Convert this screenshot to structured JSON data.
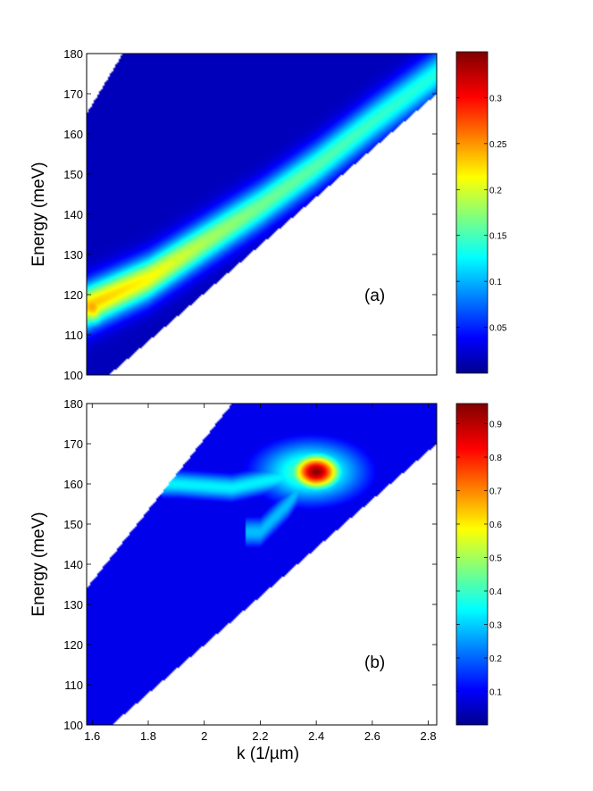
{
  "chart_data": [
    {
      "type": "heatmap",
      "panel_label": "(a)",
      "xlabel": "",
      "ylabel": "Energy (meV)",
      "xlim": [
        1.58,
        2.83
      ],
      "ylim": [
        100,
        180
      ],
      "y_ticks": [
        "100",
        "110",
        "120",
        "130",
        "140",
        "150",
        "160",
        "170",
        "180"
      ],
      "colorbar": {
        "min": 0,
        "max": 0.35,
        "ticks": [
          "0.05",
          "0.1",
          "0.15",
          "0.2",
          "0.25",
          "0.3"
        ],
        "colormap": "jet"
      },
      "region_vertices": [
        [
          1.58,
          165
        ],
        [
          1.71,
          180
        ],
        [
          2.83,
          180
        ],
        [
          2.83,
          170
        ],
        [
          1.66,
          100
        ],
        [
          1.58,
          100
        ]
      ],
      "features": [
        {
          "kind": "ridge",
          "path": [
            [
              1.58,
              117
            ],
            [
              1.8,
              124
            ],
            [
              2.0,
              133
            ],
            [
              2.2,
              142
            ],
            [
              2.4,
              152
            ],
            [
              2.6,
              163
            ],
            [
              2.83,
              175
            ]
          ],
          "peak_values": [
            0.24,
            0.22,
            0.19,
            0.17,
            0.16,
            0.15,
            0.14
          ],
          "width_meV": 5.5
        },
        {
          "kind": "hotspot",
          "center": [
            1.6,
            117
          ],
          "value": 0.25
        }
      ],
      "background_value": 0.02
    },
    {
      "type": "heatmap",
      "panel_label": "(b)",
      "xlabel": "k  (1/µm)",
      "ylabel": "Energy (meV)",
      "xlim": [
        1.58,
        2.83
      ],
      "ylim": [
        100,
        180
      ],
      "x_ticks": [
        "1.6",
        "1.8",
        "2",
        "2.2",
        "2.4",
        "2.6",
        "2.8"
      ],
      "y_ticks": [
        "100",
        "110",
        "120",
        "130",
        "140",
        "150",
        "160",
        "170",
        "180"
      ],
      "colorbar": {
        "min": 0,
        "max": 0.96,
        "ticks": [
          "0.1",
          "0.2",
          "0.3",
          "0.4",
          "0.5",
          "0.6",
          "0.7",
          "0.8",
          "0.9"
        ],
        "colormap": "jet"
      },
      "region_vertices": [
        [
          1.58,
          134
        ],
        [
          2.1,
          180
        ],
        [
          2.83,
          180
        ],
        [
          2.83,
          170
        ],
        [
          1.67,
          100
        ],
        [
          1.58,
          100
        ]
      ],
      "features": [
        {
          "kind": "hotspot",
          "center": [
            2.4,
            163
          ],
          "value": 0.95,
          "sx": 0.09,
          "sy": 4.5
        },
        {
          "kind": "halo",
          "center": [
            2.38,
            163
          ],
          "value": 0.45,
          "sx": 0.2,
          "sy": 8
        },
        {
          "kind": "band",
          "path": [
            [
              1.9,
              160
            ],
            [
              2.1,
              159
            ],
            [
              2.3,
              162
            ]
          ],
          "value": 0.35,
          "width_meV": 3.5
        },
        {
          "kind": "tail",
          "path": [
            [
              2.2,
              148
            ],
            [
              2.3,
              155
            ],
            [
              2.35,
              160
            ]
          ],
          "value": 0.3,
          "width_meV": 4
        }
      ],
      "background_value": 0.1
    }
  ]
}
